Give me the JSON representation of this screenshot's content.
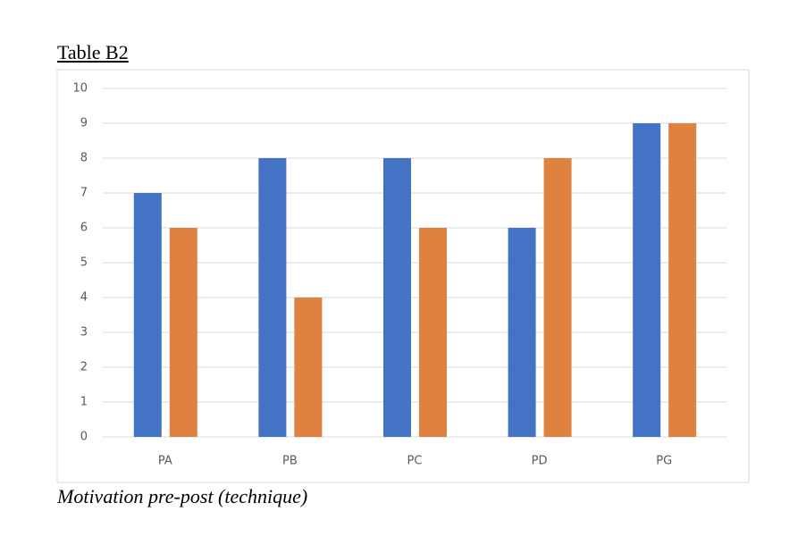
{
  "heading": "Table B2",
  "caption": "Motivation pre-post (technique)",
  "chart_data": {
    "type": "bar",
    "categories": [
      "PA",
      "PB",
      "PC",
      "PD",
      "PG"
    ],
    "series": [
      {
        "color": "#4472c4",
        "values": [
          7,
          8,
          8,
          6,
          9
        ]
      },
      {
        "color": "#e0823f",
        "values": [
          6,
          4,
          6,
          8,
          9
        ]
      }
    ],
    "ylim": [
      0,
      10
    ],
    "yticks": [
      0,
      1,
      2,
      3,
      4,
      5,
      6,
      7,
      8,
      9,
      10
    ],
    "grid": true
  }
}
